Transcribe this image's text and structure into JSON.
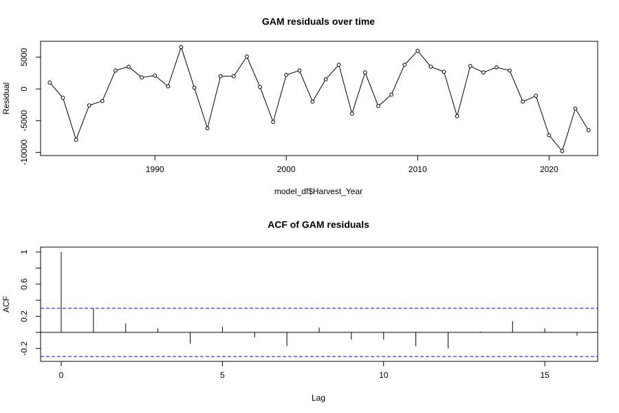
{
  "chart_data": [
    {
      "type": "line",
      "title": "GAM residuals over time",
      "xlabel": "model_df$Harvest_Year",
      "ylabel": "Residual",
      "xlim": [
        1981.3,
        2023.7
      ],
      "ylim": [
        -10500,
        7500
      ],
      "x_ticks": [
        1990,
        2000,
        2010,
        2020
      ],
      "y_ticks": [
        -10000,
        -5000,
        0,
        5000
      ],
      "markers": "open-circle",
      "series": [
        {
          "x": [
            1982,
            1983,
            1984,
            1985,
            1986,
            1987,
            1988,
            1989,
            1990,
            1991,
            1992,
            1993,
            1994,
            1995,
            1996,
            1997,
            1998,
            1999,
            2000,
            2001,
            2002,
            2003,
            2004,
            2005,
            2006,
            2007,
            2008,
            2009,
            2010,
            2011,
            2012,
            2013,
            2014,
            2015,
            2016,
            2017,
            2018,
            2019,
            2020,
            2021,
            2022,
            2023
          ],
          "values": [
            1000,
            -1400,
            -8000,
            -2600,
            -1900,
            2900,
            3500,
            1800,
            2100,
            400,
            6600,
            200,
            -6200,
            2000,
            2000,
            5100,
            300,
            -5200,
            2200,
            2900,
            -2000,
            1500,
            3800,
            -3900,
            2600,
            -2700,
            -900,
            3800,
            6000,
            3500,
            2700,
            -4300,
            3600,
            2600,
            3400,
            2900,
            -2000,
            -1100,
            -7300,
            -9800,
            -3100,
            -6500
          ]
        }
      ]
    },
    {
      "type": "bar",
      "title": "ACF of GAM residuals",
      "xlabel": "Lag",
      "ylabel": "ACF",
      "xlim": [
        -0.64,
        16.64
      ],
      "ylim": [
        -0.36,
        1.06
      ],
      "x_ticks": [
        0,
        5,
        10,
        15
      ],
      "y_ticks": [
        -0.2,
        0.2,
        0.6,
        1.0
      ],
      "y_ticks_minor": [
        0.0,
        0.4,
        0.8
      ],
      "confidence_band": [
        0.3,
        -0.3
      ],
      "confidence_color": "#0000cc",
      "series": [
        {
          "x": [
            0,
            1,
            2,
            3,
            4,
            5,
            6,
            7,
            8,
            9,
            10,
            11,
            12,
            13,
            14,
            15,
            16
          ],
          "values": [
            1.0,
            0.3,
            0.11,
            0.05,
            -0.14,
            0.07,
            -0.06,
            -0.17,
            0.06,
            -0.09,
            -0.09,
            -0.17,
            -0.2,
            0.01,
            0.14,
            0.05,
            -0.04
          ]
        }
      ]
    }
  ]
}
